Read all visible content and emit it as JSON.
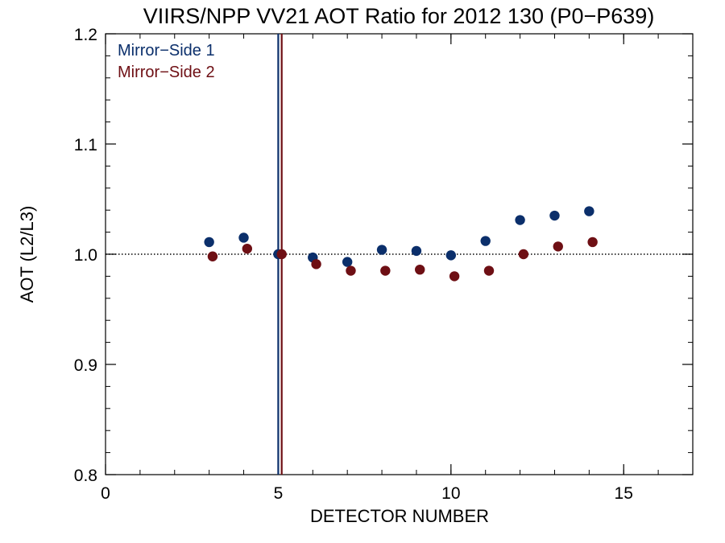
{
  "chart_data": {
    "type": "scatter",
    "title": "VIIRS/NPP VV21 AOT Ratio for 2012 130 (P0−P639)",
    "xlabel": "DETECTOR NUMBER",
    "ylabel": "AOT (L2/L3)",
    "xlim": [
      0,
      17
    ],
    "ylim": [
      0.8,
      1.2
    ],
    "x_ticks": [
      0,
      5,
      10,
      15
    ],
    "x_tick_labels": [
      "0",
      "5",
      "10",
      "15"
    ],
    "y_ticks": [
      0.8,
      0.9,
      1.0,
      1.1,
      1.2
    ],
    "y_tick_labels": [
      "0.8",
      "0.9",
      "1.0",
      "1.1",
      "1.2"
    ],
    "x_minor_step": 1,
    "y_minor_step": 0.02,
    "grid": false,
    "legend_position": "top-left",
    "reference_line": {
      "y": 1.0,
      "style": "dotted"
    },
    "series": [
      {
        "name": "Mirror−Side 1",
        "color": "#0b2f6b",
        "x": [
          3,
          4,
          5,
          6,
          7,
          8,
          9,
          10,
          11,
          12,
          13,
          14
        ],
        "y": [
          1.011,
          1.015,
          1.0,
          0.997,
          0.993,
          1.004,
          1.003,
          0.999,
          1.012,
          1.031,
          1.035,
          1.039
        ],
        "vline_x": 5
      },
      {
        "name": "Mirror−Side 2",
        "color": "#6e0f14",
        "x": [
          3.1,
          4.1,
          5.1,
          6.1,
          7.1,
          8.1,
          9.1,
          10.1,
          11.1,
          12.1,
          13.1,
          14.1
        ],
        "y": [
          0.998,
          1.005,
          1.0,
          0.991,
          0.985,
          0.985,
          0.986,
          0.98,
          0.985,
          1.0,
          1.007,
          1.011
        ],
        "vline_x": 5.1
      }
    ]
  }
}
